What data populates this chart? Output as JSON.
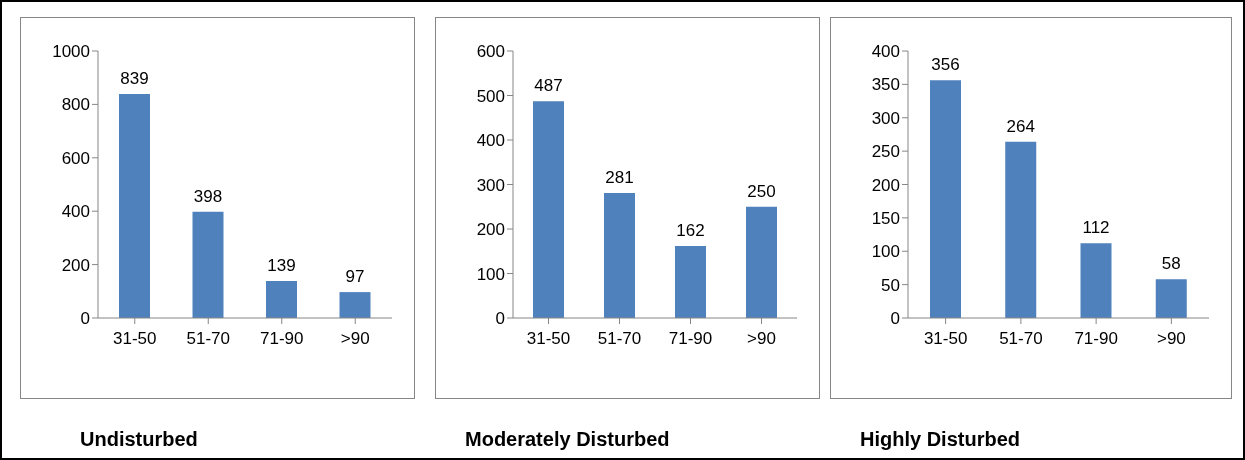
{
  "chart_data": [
    {
      "type": "bar",
      "title": "Undisturbed",
      "categories": [
        "31-50",
        "51-70",
        "71-90",
        ">90"
      ],
      "values": [
        839,
        398,
        139,
        97
      ],
      "color": "#4f81bd",
      "ylim": [
        0,
        1000
      ],
      "yticks": [
        0,
        200,
        400,
        600,
        800,
        1000
      ],
      "data_labels": true,
      "grid": false
    },
    {
      "type": "bar",
      "title": "Moderately Disturbed",
      "categories": [
        "31-50",
        "51-70",
        "71-90",
        ">90"
      ],
      "values": [
        487,
        281,
        162,
        250
      ],
      "color": "#4f81bd",
      "ylim": [
        0,
        600
      ],
      "yticks": [
        0,
        100,
        200,
        300,
        400,
        500,
        600
      ],
      "data_labels": true,
      "grid": false
    },
    {
      "type": "bar",
      "title": "Highly Disturbed",
      "categories": [
        "31-50",
        "51-70",
        "71-90",
        ">90"
      ],
      "values": [
        356,
        264,
        112,
        58
      ],
      "color": "#4f81bd",
      "ylim": [
        0,
        400
      ],
      "yticks": [
        0,
        50,
        100,
        150,
        200,
        250,
        300,
        350,
        400
      ],
      "data_labels": true,
      "grid": false
    }
  ]
}
